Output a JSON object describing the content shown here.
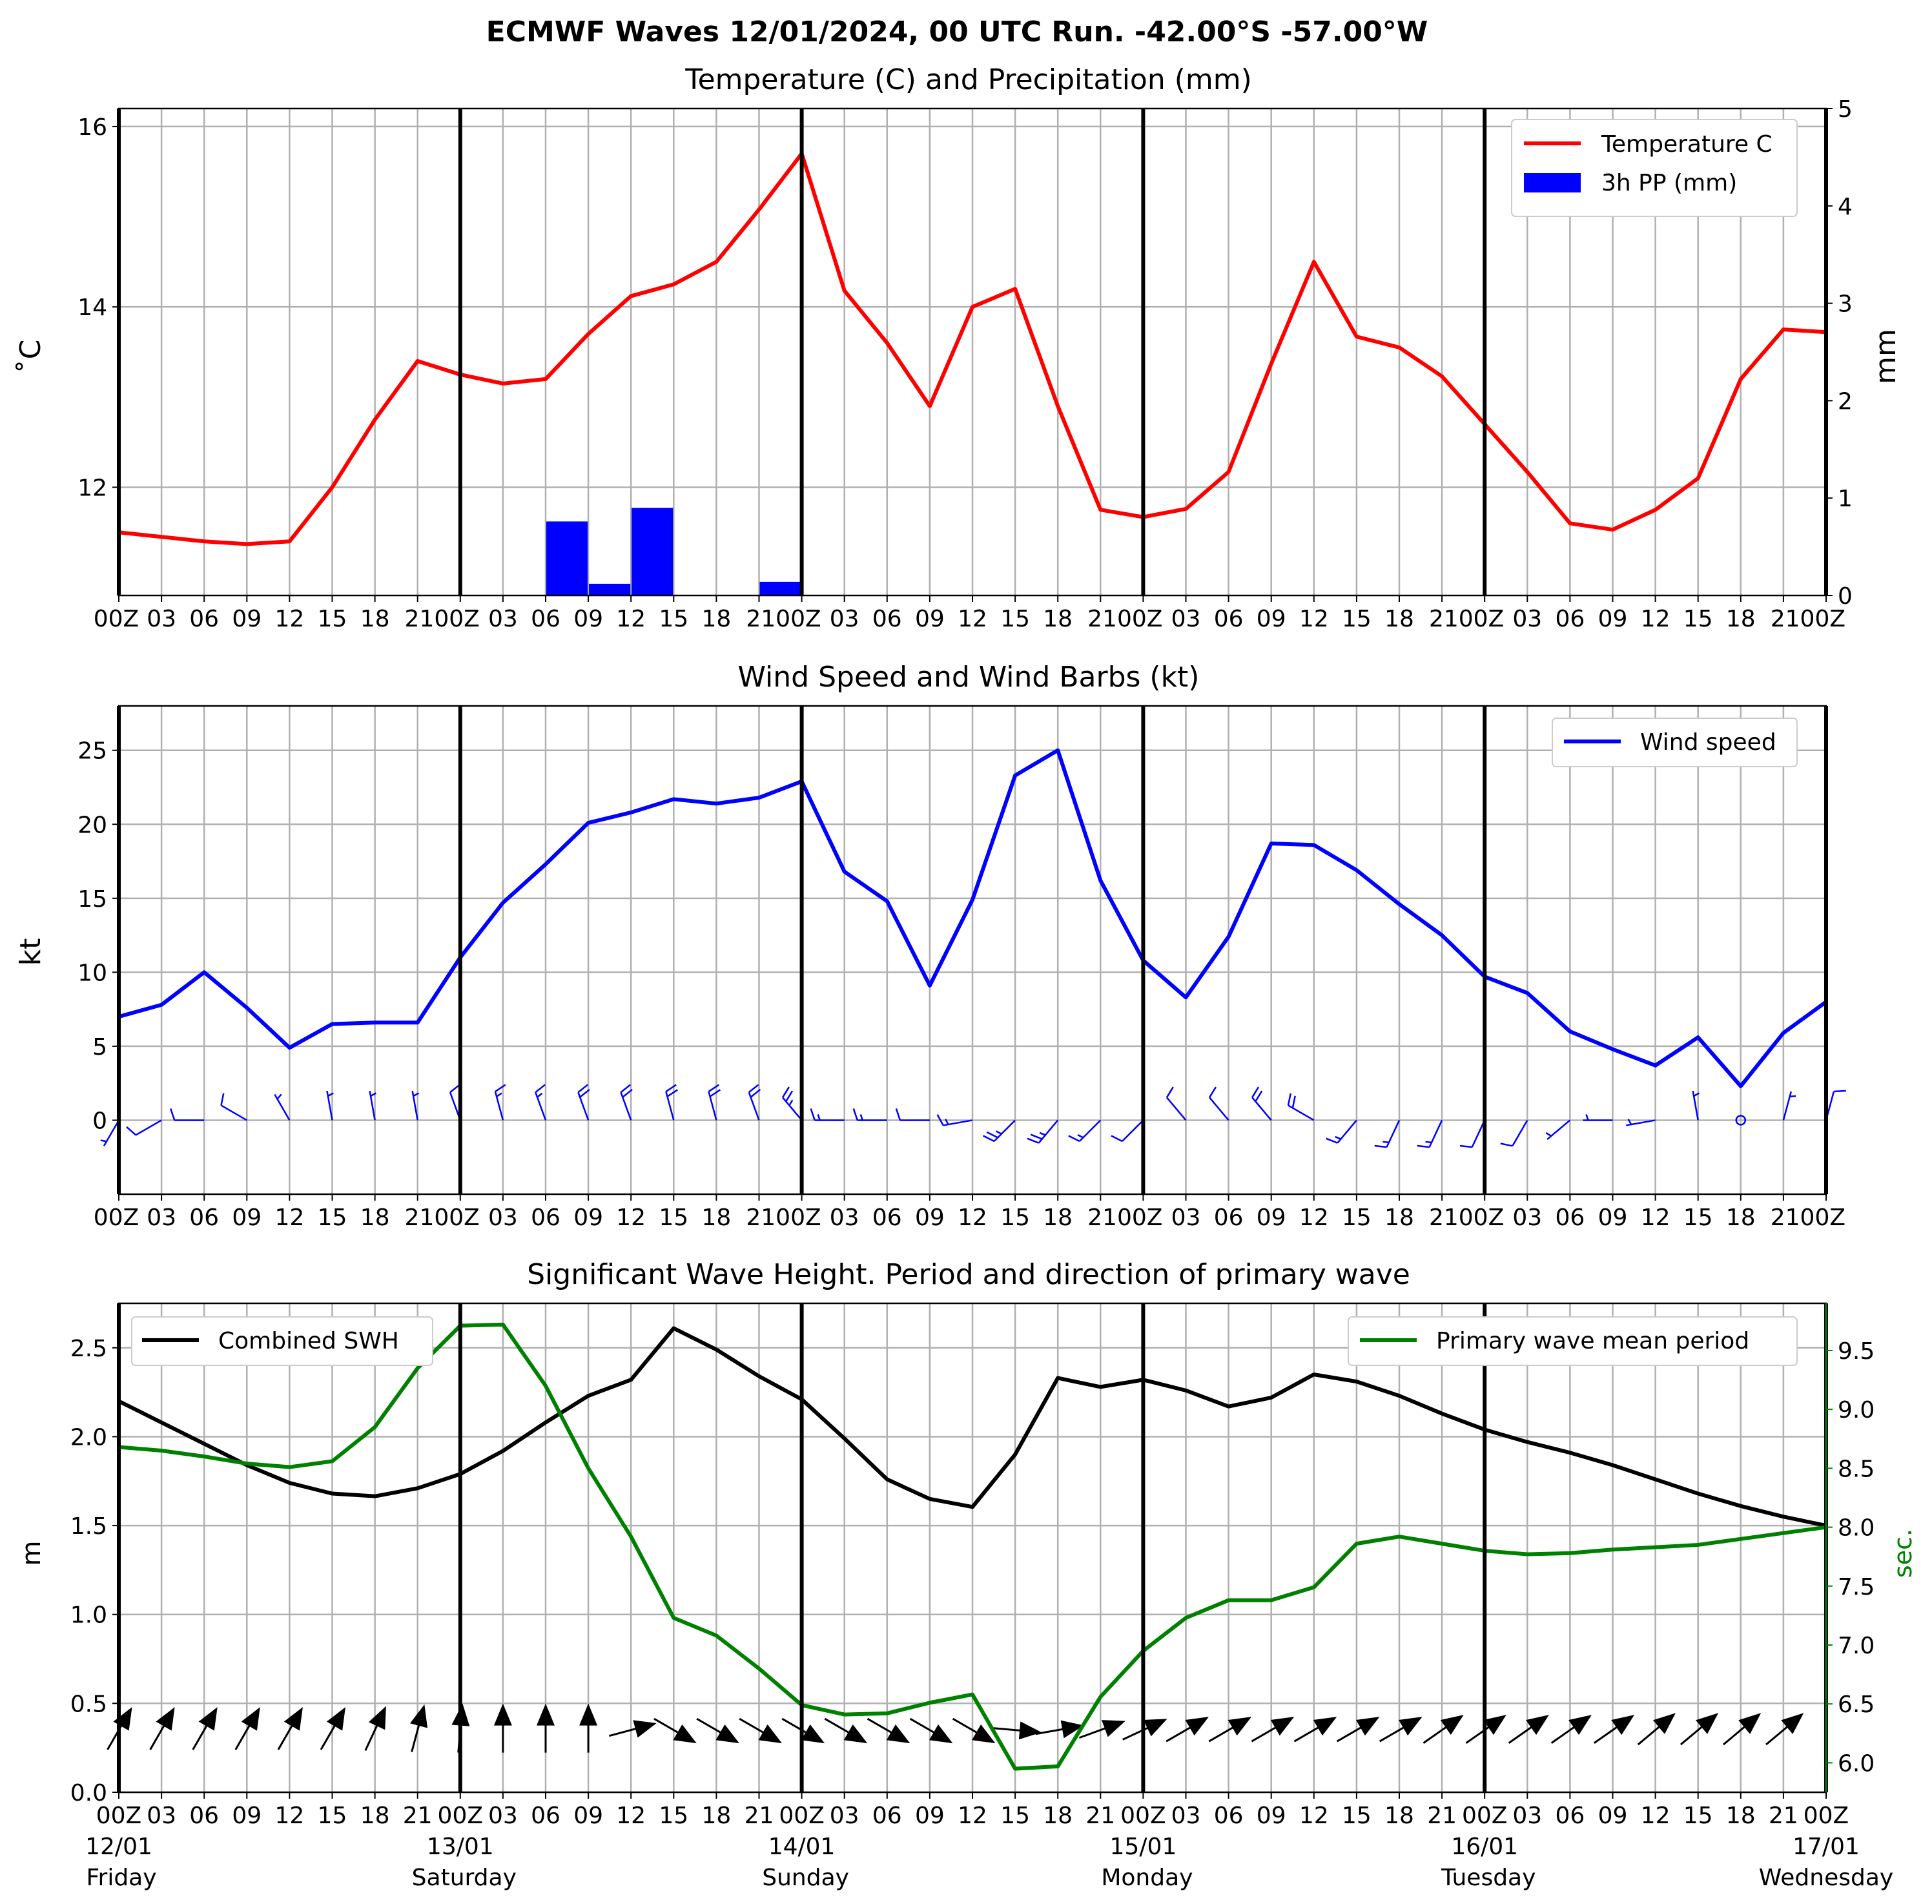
{
  "figure": {
    "title": "ECMWF Waves 12/01/2024, 00 UTC Run. -42.00°S -57.00°W"
  },
  "colors": {
    "temperature": "#ff0000",
    "precipitation": "#0000ff",
    "wind": "#0000ff",
    "swh": "#000000",
    "period": "#008000",
    "grid": "#b0b0b0",
    "day_line": "#000000"
  },
  "x_tick_labels": [
    "00Z",
    "03",
    "06",
    "09",
    "12",
    "15",
    "18",
    "21",
    "00Z",
    "03",
    "06",
    "09",
    "12",
    "15",
    "18",
    "21",
    "00Z",
    "03",
    "06",
    "09",
    "12",
    "15",
    "18",
    "21",
    "00Z",
    "03",
    "06",
    "09",
    "12",
    "15",
    "18",
    "21",
    "00Z",
    "03",
    "06",
    "09",
    "12",
    "15",
    "18",
    "21",
    "00Z"
  ],
  "x_tick_labels_top": [
    "00Z",
    "03",
    "06",
    "09",
    "12",
    "15",
    "18",
    "2100Z",
    "03",
    "06",
    "09",
    "12",
    "15",
    "18",
    "2100Z",
    "03",
    "06",
    "09",
    "12",
    "15",
    "18",
    "2100Z",
    "03",
    "06",
    "09",
    "12",
    "15",
    "18",
    "2100Z",
    "03",
    "06",
    "09",
    "12",
    "15",
    "18",
    "2100Z"
  ],
  "day_labels": [
    {
      "date": "12/01",
      "day": "Friday"
    },
    {
      "date": "13/01",
      "day": "Saturday"
    },
    {
      "date": "14/01",
      "day": "Sunday"
    },
    {
      "date": "15/01",
      "day": "Monday"
    },
    {
      "date": "16/01",
      "day": "Tuesday"
    },
    {
      "date": "17/01",
      "day": "Wednesday"
    }
  ],
  "chart_data": [
    {
      "type": "line",
      "title": "Temperature (C) and Precipitation (mm)",
      "ylabel": "$^\\circ$C",
      "ylabel_display": "˚C",
      "y2label": "mm",
      "ylim": [
        10.8,
        16.2
      ],
      "yticks": [
        12,
        14,
        16
      ],
      "y2lim": [
        0,
        5
      ],
      "y2ticks": [
        0,
        1,
        2,
        3,
        4,
        5
      ],
      "legend_position": "top-right",
      "legend": [
        "Temperature C",
        "3h PP (mm)"
      ],
      "x_hours": [
        0,
        3,
        6,
        9,
        12,
        15,
        18,
        21,
        24,
        27,
        30,
        33,
        36,
        39,
        42,
        45,
        48,
        51,
        54,
        57,
        60,
        63,
        66,
        69,
        72,
        75,
        78,
        81,
        84,
        87,
        90,
        93,
        96,
        99,
        102,
        105,
        108,
        111,
        114,
        117,
        120
      ],
      "series": [
        {
          "name": "Temperature C",
          "kind": "line",
          "values": [
            11.5,
            11.45,
            11.4,
            11.37,
            11.4,
            12.0,
            12.75,
            13.4,
            13.25,
            13.15,
            13.2,
            13.7,
            14.12,
            14.25,
            14.5,
            15.08,
            15.7,
            14.18,
            13.6,
            12.9,
            14.0,
            14.2,
            12.9,
            11.75,
            11.67,
            11.76,
            12.17,
            13.37,
            14.5,
            13.67,
            13.55,
            13.23,
            12.7,
            12.17,
            11.6,
            11.53,
            11.75,
            12.1,
            13.2,
            13.75,
            13.72
          ]
        },
        {
          "name": "3h PP (mm)",
          "kind": "bar",
          "bars": [
            {
              "start_hour": 30,
              "value": 0.76
            },
            {
              "start_hour": 33,
              "value": 0.12
            },
            {
              "start_hour": 36,
              "value": 0.9
            },
            {
              "start_hour": 45,
              "value": 0.14
            }
          ]
        }
      ]
    },
    {
      "type": "line",
      "title": "Wind Speed and Wind Barbs (kt)",
      "ylabel": "kt",
      "ylim": [
        -5,
        28
      ],
      "yticks": [
        0,
        5,
        10,
        15,
        20,
        25
      ],
      "legend_position": "top-right",
      "legend": [
        "Wind speed"
      ],
      "x_hours": [
        0,
        3,
        6,
        9,
        12,
        15,
        18,
        21,
        24,
        27,
        30,
        33,
        36,
        39,
        42,
        45,
        48,
        51,
        54,
        57,
        60,
        63,
        66,
        69,
        72,
        75,
        78,
        81,
        84,
        87,
        90,
        93,
        96,
        99,
        102,
        105,
        108,
        111,
        114,
        117,
        120
      ],
      "series": [
        {
          "name": "Wind speed",
          "kind": "line",
          "values": [
            7.0,
            7.8,
            10.0,
            7.6,
            4.9,
            6.5,
            6.6,
            6.6,
            11.0,
            14.7,
            17.3,
            20.1,
            20.8,
            21.7,
            21.4,
            21.8,
            22.9,
            16.8,
            14.8,
            9.1,
            14.9,
            23.3,
            25.0,
            16.2,
            10.8,
            8.3,
            12.4,
            18.7,
            18.6,
            16.9,
            14.6,
            12.5,
            9.7,
            8.6,
            6.0,
            4.8,
            3.7,
            5.6,
            2.3,
            5.9,
            8.0
          ]
        }
      ],
      "barb_dir_from_deg": [
        210,
        240,
        270,
        300,
        330,
        350,
        350,
        350,
        340,
        345,
        340,
        340,
        340,
        345,
        345,
        340,
        320,
        270,
        270,
        270,
        260,
        225,
        220,
        225,
        225,
        320,
        320,
        320,
        300,
        220,
        205,
        205,
        205,
        210,
        230,
        270,
        260,
        350,
        0,
        15,
        15
      ]
    },
    {
      "type": "line",
      "title": "Significant Wave Height. Period and direction of primary wave",
      "ylabel": "m",
      "y2label": "sec.",
      "ylim": [
        0.0,
        2.75
      ],
      "yticks": [
        0.0,
        0.5,
        1.0,
        1.5,
        2.0,
        2.5
      ],
      "y2lim": [
        5.75,
        9.9
      ],
      "y2ticks": [
        6.0,
        6.5,
        7.0,
        7.5,
        8.0,
        8.5,
        9.0,
        9.5
      ],
      "legend": [
        "Combined SWH",
        "Primary wave mean period"
      ],
      "legend_positions": [
        "top-left",
        "top-right"
      ],
      "x_hours": [
        0,
        3,
        6,
        9,
        12,
        15,
        18,
        21,
        24,
        27,
        30,
        33,
        36,
        39,
        42,
        45,
        48,
        51,
        54,
        57,
        60,
        63,
        66,
        69,
        72,
        75,
        78,
        81,
        84,
        87,
        90,
        93,
        96,
        99,
        102,
        105,
        108,
        111,
        114,
        117,
        120
      ],
      "series": [
        {
          "name": "Combined SWH",
          "kind": "line",
          "values": [
            2.2,
            2.08,
            1.96,
            1.84,
            1.74,
            1.68,
            1.665,
            1.71,
            1.79,
            1.92,
            2.08,
            2.23,
            2.32,
            2.61,
            2.49,
            2.34,
            2.21,
            1.99,
            1.76,
            1.65,
            1.605,
            1.9,
            2.33,
            2.28,
            2.32,
            2.26,
            2.17,
            2.22,
            2.35,
            2.31,
            2.23,
            2.13,
            2.04,
            1.97,
            1.91,
            1.84,
            1.76,
            1.68,
            1.61,
            1.55,
            1.5
          ]
        },
        {
          "name": "Primary wave mean period",
          "kind": "line",
          "axis": "right",
          "values": [
            8.68,
            8.65,
            8.6,
            8.54,
            8.51,
            8.56,
            8.85,
            9.35,
            9.71,
            9.72,
            9.2,
            8.5,
            7.92,
            7.23,
            7.08,
            6.8,
            6.49,
            6.41,
            6.42,
            6.51,
            6.58,
            5.95,
            5.97,
            6.56,
            6.95,
            7.23,
            7.38,
            7.38,
            7.49,
            7.86,
            7.92,
            7.86,
            7.8,
            7.77,
            7.78,
            7.81,
            7.83,
            7.85,
            7.9,
            7.95,
            8.0
          ]
        }
      ],
      "wave_dir_to_deg": [
        30,
        30,
        30,
        30,
        30,
        30,
        25,
        15,
        5,
        0,
        0,
        0,
        75,
        120,
        120,
        120,
        120,
        120,
        120,
        120,
        120,
        95,
        80,
        70,
        65,
        60,
        60,
        60,
        60,
        60,
        60,
        55,
        55,
        55,
        55,
        55,
        50,
        50,
        50,
        50,
        50
      ]
    }
  ]
}
